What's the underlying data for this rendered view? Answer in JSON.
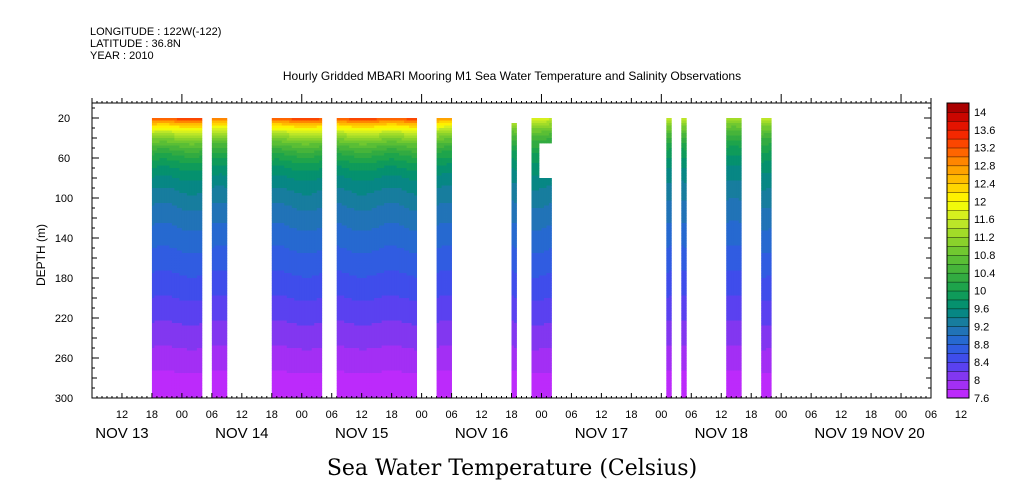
{
  "header": {
    "longitude": "LONGITUDE : 122W(-122)",
    "latitude": "LATITUDE : 36.8N",
    "year": "YEAR : 2010"
  },
  "chart_data": {
    "type": "heatmap",
    "title": "Hourly Gridded MBARI Mooring M1 Sea Water Temperature and Salinity Observations",
    "xlabel": "",
    "ylabel": "DEPTH (m)",
    "caption": "Sea Water Temperature (Celsius)",
    "xlim_hours": [
      6,
      174
    ],
    "ylim": [
      300,
      5
    ],
    "y_ticks": [
      20,
      60,
      100,
      140,
      180,
      220,
      260,
      300
    ],
    "x_hour_ticks": [
      "12",
      "18",
      "00",
      "06",
      "12",
      "18",
      "00",
      "06",
      "12",
      "18",
      "00",
      "06",
      "12",
      "18",
      "00",
      "06",
      "12",
      "18",
      "00",
      "06",
      "12",
      "18",
      "00",
      "06",
      "12",
      "18",
      "00",
      "06",
      "12"
    ],
    "x_day_labels": [
      "NOV 13",
      "NOV 14",
      "NOV 15",
      "NOV 16",
      "NOV 17",
      "NOV 18",
      "NOV 19",
      "NOV 20"
    ],
    "colorbar": {
      "min": 7.6,
      "max": 14.2,
      "step": 0.2,
      "labels": [
        "14",
        "13.6",
        "13.2",
        "12.8",
        "12.4",
        "12",
        "11.6",
        "11.2",
        "10.8",
        "10.4",
        "10",
        "9.6",
        "9.2",
        "8.8",
        "8.4",
        "8",
        "7.6"
      ]
    },
    "data_segments": [
      {
        "start": 18,
        "end": 28,
        "surface_temp": 13.2
      },
      {
        "start": 30,
        "end": 33,
        "surface_temp": 13.0
      },
      {
        "start": 42,
        "end": 52,
        "surface_temp": 13.2
      },
      {
        "start": 55,
        "end": 71,
        "surface_temp": 13.2
      },
      {
        "start": 75,
        "end": 78,
        "surface_temp": 12.8
      },
      {
        "start": 90,
        "end": 91,
        "surface_temp": 11.8,
        "min_depth": 25
      },
      {
        "start": 94,
        "end": 98,
        "surface_temp": 11.6,
        "gap_depth": [
          45,
          80
        ],
        "gap_hours": [
          95.5,
          98
        ]
      },
      {
        "start": 121,
        "end": 122,
        "surface_temp": 11.6
      },
      {
        "start": 124,
        "end": 125,
        "surface_temp": 11.6
      },
      {
        "start": 133,
        "end": 136,
        "surface_temp": 11.4
      },
      {
        "start": 140,
        "end": 142,
        "surface_temp": 11.4
      }
    ]
  }
}
